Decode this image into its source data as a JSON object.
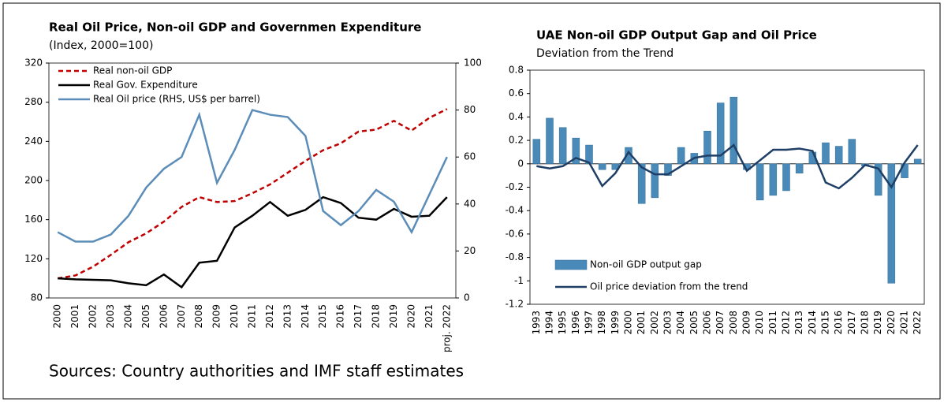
{
  "note": "Sources: Country authorities and IMF staff estimates",
  "chart_data": [
    {
      "type": "line",
      "title": "Real Oil Price, Non-oil GDP and Governmen Expenditure",
      "subtitle": "(Index, 2000=100)",
      "categories": [
        "2000",
        "2001",
        "2002",
        "2003",
        "2004",
        "2005",
        "2006",
        "2007",
        "2008",
        "2009",
        "2010",
        "2011",
        "2012",
        "2013",
        "2014",
        "2015",
        "2016",
        "2017",
        "2018",
        "2019",
        "2020",
        "2021",
        "proj. 2022"
      ],
      "ylim": [
        80,
        320
      ],
      "yticks": [
        80,
        120,
        160,
        200,
        240,
        280,
        320
      ],
      "y2lim": [
        0,
        100
      ],
      "y2ticks": [
        0,
        20,
        40,
        60,
        80,
        100
      ],
      "legend": "top-left",
      "series": [
        {
          "name": "Real non-oil GDP",
          "color": "#c00000",
          "style": "dashed",
          "values": [
            100,
            103,
            112,
            124,
            137,
            146,
            158,
            173,
            183,
            178,
            179,
            187,
            196,
            208,
            220,
            231,
            238,
            250,
            252,
            261,
            251,
            264,
            273
          ]
        },
        {
          "name": "Real Gov. Expenditure",
          "color": "#000000",
          "style": "solid",
          "values": [
            100,
            99,
            98.5,
            98,
            95,
            93,
            104,
            91,
            116,
            118,
            152,
            164,
            178,
            164,
            170,
            183,
            177,
            162,
            160,
            171,
            163,
            164,
            183
          ]
        },
        {
          "name": "Real Oil price (RHS, US$ per barrel)",
          "color": "#5b8db8",
          "style": "solid",
          "axis": "y2",
          "values": [
            28,
            24,
            24,
            27,
            35,
            47,
            55,
            60,
            78,
            49,
            63,
            80,
            78,
            77,
            69,
            37,
            31,
            37,
            46,
            41,
            28,
            44,
            60
          ]
        }
      ]
    },
    {
      "type": "combo",
      "title": "UAE Non-oil GDP Output Gap and Oil Price",
      "subtitle": "Deviation from the Trend",
      "categories": [
        "1993",
        "1994",
        "1995",
        "1996",
        "1997",
        "1998",
        "1999",
        "2000",
        "2001",
        "2002",
        "2003",
        "2004",
        "2005",
        "2006",
        "2007",
        "2008",
        "2009",
        "2010",
        "2011",
        "2012",
        "2013",
        "2014",
        "2015",
        "2016",
        "2017",
        "2018",
        "2019",
        "2020",
        "2021",
        "2022"
      ],
      "ylim": [
        -1.2,
        0.8
      ],
      "yticks": [
        -1.2,
        -1,
        -0.8,
        -0.6,
        -0.4,
        -0.2,
        0,
        0.2,
        0.4,
        0.6,
        0.8
      ],
      "legend": "bottom-left",
      "series": [
        {
          "name": "Non-oil GDP output gap",
          "color": "#4a8ab8",
          "type": "bar",
          "values": [
            0.21,
            0.39,
            0.31,
            0.22,
            0.16,
            -0.05,
            -0.05,
            0.14,
            -0.34,
            -0.29,
            -0.1,
            0.14,
            0.09,
            0.28,
            0.52,
            0.57,
            -0.05,
            -0.31,
            -0.27,
            -0.23,
            -0.08,
            0.1,
            0.18,
            0.15,
            0.21,
            -0.02,
            -0.27,
            -1.02,
            -0.12,
            0.04
          ]
        },
        {
          "name": "Oil price deviation from the trend",
          "color": "#1f3f66",
          "type": "line",
          "values": [
            -0.02,
            -0.04,
            -0.02,
            0.05,
            0.01,
            -0.19,
            -0.08,
            0.1,
            -0.03,
            -0.09,
            -0.09,
            -0.02,
            0.05,
            0.07,
            0.07,
            0.16,
            -0.06,
            0.03,
            0.12,
            0.12,
            0.13,
            0.11,
            -0.16,
            -0.21,
            -0.12,
            -0.01,
            -0.04,
            -0.2,
            0.01,
            0.16
          ]
        }
      ]
    }
  ]
}
